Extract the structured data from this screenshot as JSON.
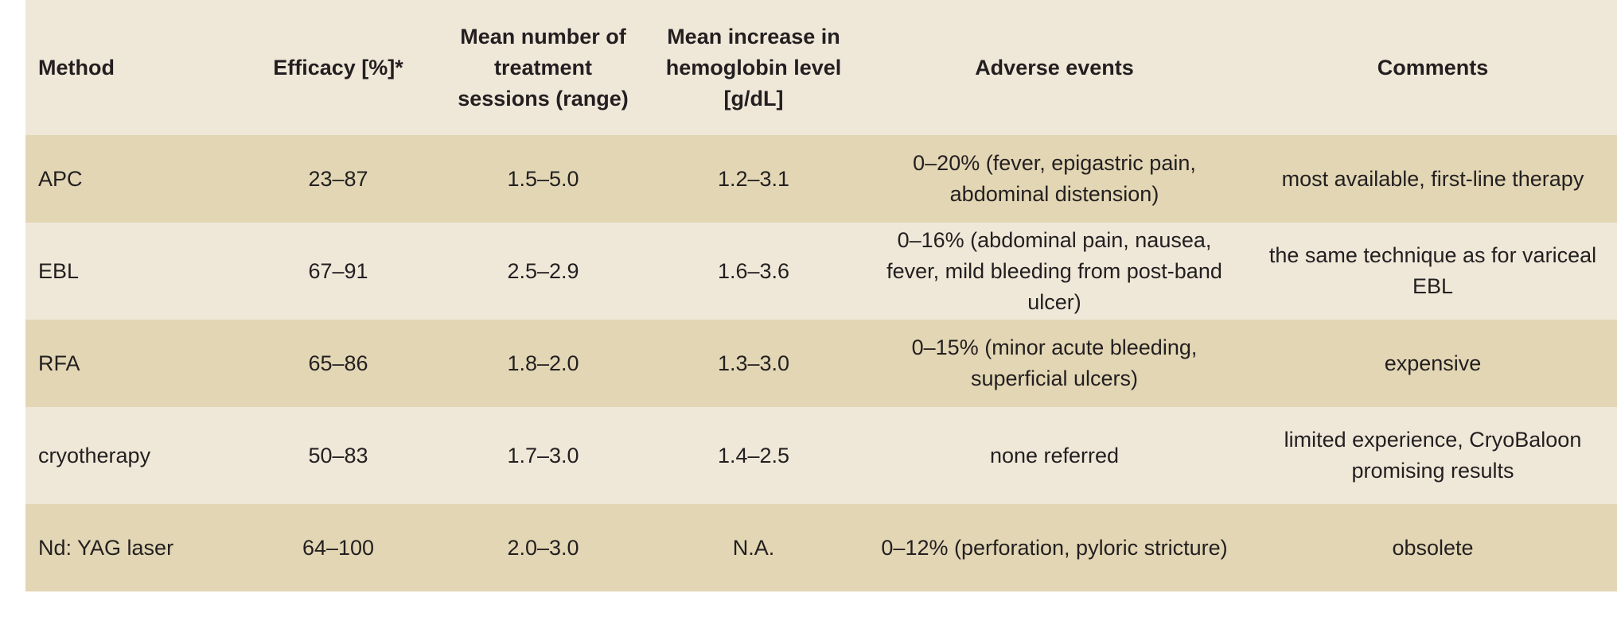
{
  "headers": [
    "Method",
    "Efficacy [%]*",
    "Mean number of treatment sessions (range)",
    "Mean increase in hemoglobin level [g/dL]",
    "Adverse events",
    "Comments"
  ],
  "rows": [
    [
      "APC",
      "23–87",
      "1.5–5.0",
      "1.2–3.1",
      "0–20% (fever, epigastric pain, abdominal distension)",
      "most available, first-line therapy"
    ],
    [
      "EBL",
      "67–91",
      "2.5–2.9",
      "1.6–3.6",
      "0–16% (abdominal pain, nausea, fever, mild bleeding from post-band ulcer)",
      "the same technique as for variceal EBL"
    ],
    [
      "RFA",
      "65–86",
      "1.8–2.0",
      "1.3–3.0",
      "0–15% (minor acute bleeding, superficial ulcers)",
      "expensive"
    ],
    [
      "cryotherapy",
      "50–83",
      "1.7–3.0",
      "1.4–2.5",
      "none referred",
      "limited experience, CryoBaloon promising results"
    ],
    [
      "Nd: YAG laser",
      "64–100",
      "2.0–3.0",
      "N.A.",
      "0–12% (perforation, pyloric stricture)",
      "obsolete"
    ]
  ]
}
